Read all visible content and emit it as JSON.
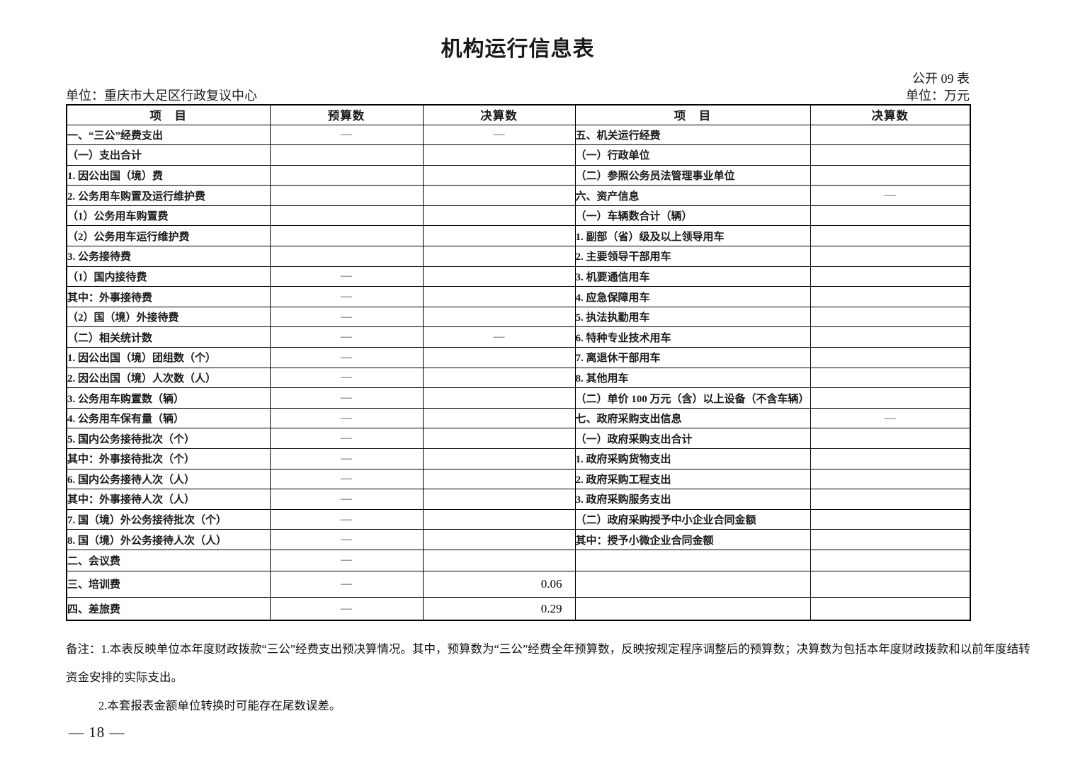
{
  "page": {
    "title": "机构运行信息表",
    "doc_label": "公开 09 表",
    "unit_left": "单位：重庆市大足区行政复议中心",
    "unit_right": "单位：万元",
    "page_number": "— 18 —"
  },
  "table": {
    "headers": [
      "项　目",
      "预算数",
      "决算数",
      "项　目",
      "决算数"
    ],
    "rows": [
      {
        "left": {
          "label": "一、“三公”经费支出",
          "indent": 0,
          "budget": "—",
          "final": "—"
        },
        "right": {
          "label": "五、机关运行经费",
          "indent": 0,
          "final": ""
        }
      },
      {
        "left": {
          "label": "（一）支出合计",
          "indent": 1,
          "budget": "",
          "final": ""
        },
        "right": {
          "label": "（一）行政单位",
          "indent": 1,
          "final": ""
        }
      },
      {
        "left": {
          "label": "1. 因公出国（境）费",
          "indent": 2,
          "budget": "",
          "final": ""
        },
        "right": {
          "label": "（二）参照公务员法管理事业单位",
          "indent": 1,
          "final": ""
        }
      },
      {
        "left": {
          "label": "2. 公务用车购置及运行维护费",
          "indent": 2,
          "budget": "",
          "final": ""
        },
        "right": {
          "label": "六、资产信息",
          "indent": 0,
          "final": "—"
        }
      },
      {
        "left": {
          "label": "（1）公务用车购置费",
          "indent": 3,
          "budget": "",
          "final": ""
        },
        "right": {
          "label": "（一）车辆数合计（辆）",
          "indent": 1,
          "final": ""
        }
      },
      {
        "left": {
          "label": "（2）公务用车运行维护费",
          "indent": 3,
          "budget": "",
          "final": ""
        },
        "right": {
          "label": "1. 副部（省）级及以上领导用车",
          "indent": 2,
          "final": ""
        }
      },
      {
        "left": {
          "label": "3. 公务接待费",
          "indent": 2,
          "budget": "",
          "final": ""
        },
        "right": {
          "label": "2. 主要领导干部用车",
          "indent": 2,
          "final": ""
        }
      },
      {
        "left": {
          "label": "（1）国内接待费",
          "indent": 3,
          "budget": "—",
          "final": ""
        },
        "right": {
          "label": "3. 机要通信用车",
          "indent": 2,
          "final": ""
        }
      },
      {
        "left": {
          "label": "其中：外事接待费",
          "indent": 4,
          "budget": "—",
          "final": ""
        },
        "right": {
          "label": "4. 应急保障用车",
          "indent": 2,
          "final": ""
        }
      },
      {
        "left": {
          "label": "（2）国（境）外接待费",
          "indent": 3,
          "budget": "—",
          "final": ""
        },
        "right": {
          "label": "5. 执法执勤用车",
          "indent": 2,
          "final": ""
        }
      },
      {
        "left": {
          "label": "（二）相关统计数",
          "indent": 1,
          "budget": "—",
          "final": "—"
        },
        "right": {
          "label": "6. 特种专业技术用车",
          "indent": 2,
          "final": ""
        }
      },
      {
        "left": {
          "label": "1. 因公出国（境）团组数（个）",
          "indent": 2,
          "budget": "—",
          "final": ""
        },
        "right": {
          "label": "7. 离退休干部用车",
          "indent": 2,
          "final": ""
        }
      },
      {
        "left": {
          "label": "2. 因公出国（境）人次数（人）",
          "indent": 2,
          "budget": "—",
          "final": ""
        },
        "right": {
          "label": "8. 其他用车",
          "indent": 2,
          "final": ""
        }
      },
      {
        "left": {
          "label": "3. 公务用车购置数（辆）",
          "indent": 2,
          "budget": "—",
          "final": ""
        },
        "right": {
          "label": "（二）单价 100 万元（含）以上设备（不含车辆）",
          "indent": 1,
          "final": ""
        }
      },
      {
        "left": {
          "label": "4. 公务用车保有量（辆）",
          "indent": 2,
          "budget": "—",
          "final": ""
        },
        "right": {
          "label": "七、政府采购支出信息",
          "indent": 0,
          "final": "—"
        }
      },
      {
        "left": {
          "label": "5. 国内公务接待批次（个）",
          "indent": 2,
          "budget": "—",
          "final": ""
        },
        "right": {
          "label": "（一）政府采购支出合计",
          "indent": 1,
          "final": ""
        }
      },
      {
        "left": {
          "label": "其中：外事接待批次（个）",
          "indent": 4,
          "budget": "—",
          "final": ""
        },
        "right": {
          "label": "1. 政府采购货物支出",
          "indent": 2,
          "final": ""
        }
      },
      {
        "left": {
          "label": "6. 国内公务接待人次（人）",
          "indent": 2,
          "budget": "—",
          "final": ""
        },
        "right": {
          "label": "2. 政府采购工程支出",
          "indent": 2,
          "final": ""
        }
      },
      {
        "left": {
          "label": "其中：外事接待人次（人）",
          "indent": 4,
          "budget": "—",
          "final": ""
        },
        "right": {
          "label": "3. 政府采购服务支出",
          "indent": 2,
          "final": ""
        }
      },
      {
        "left": {
          "label": "7. 国（境）外公务接待批次（个）",
          "indent": 2,
          "budget": "—",
          "final": ""
        },
        "right": {
          "label": "（二）政府采购授予中小企业合同金额",
          "indent": 1,
          "final": ""
        }
      },
      {
        "left": {
          "label": "8. 国（境）外公务接待人次（人）",
          "indent": 2,
          "budget": "—",
          "final": ""
        },
        "right": {
          "label": "其中：授予小微企业合同金额",
          "indent": 4,
          "final": ""
        }
      },
      {
        "left": {
          "label": "二、会议费",
          "indent": 0,
          "budget": "—",
          "final": ""
        },
        "right": {
          "label": "",
          "indent": 0,
          "final": ""
        }
      },
      {
        "left": {
          "label": "三、培训费",
          "indent": 0,
          "budget": "—",
          "final": "0.06"
        },
        "right": {
          "label": "",
          "indent": 0,
          "final": ""
        }
      },
      {
        "left": {
          "label": "四、差旅费",
          "indent": 0,
          "budget": "—",
          "final": "0.29"
        },
        "right": {
          "label": "",
          "indent": 0,
          "final": ""
        }
      }
    ]
  },
  "notes": {
    "lines": [
      "备注：1.本表反映单位本年度财政拨款“三公”经费支出预决算情况。其中，预算数为“三公”经费全年预算数，反映按规定程序调整后的预算数；决算数为包括本年度财政拨款和以前年度结转",
      "资金安排的实际支出。",
      "2.本套报表金额单位转换时可能存在尾数误差。"
    ]
  }
}
